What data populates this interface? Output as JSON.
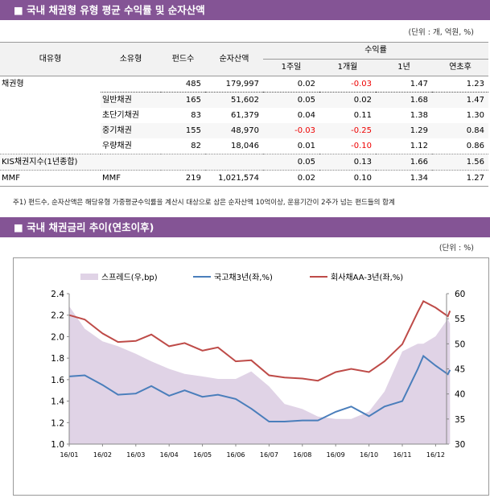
{
  "section1": {
    "title": "■ 국내 채권형 유형 평균 수익률 및 순자산액",
    "unit": "(단위 : 개, 억원, %)",
    "headers": {
      "major": "대유형",
      "minor": "소유형",
      "funds": "펀드수",
      "assets": "순자산액",
      "returns": "수익률",
      "w1": "1주일",
      "m1": "1개월",
      "y1": "1년",
      "ytd": "연초후"
    },
    "rows": [
      {
        "major": "채권형",
        "minor": "",
        "funds": "485",
        "assets": "179,997",
        "w1": "0.02",
        "m1": "-0.03",
        "y1": "1.47",
        "ytd": "1.23"
      },
      {
        "major": "",
        "minor": "일반채권",
        "funds": "165",
        "assets": "51,602",
        "w1": "0.05",
        "m1": "0.02",
        "y1": "1.68",
        "ytd": "1.47"
      },
      {
        "major": "",
        "minor": "초단기채권",
        "funds": "83",
        "assets": "61,379",
        "w1": "0.04",
        "m1": "0.11",
        "y1": "1.38",
        "ytd": "1.30"
      },
      {
        "major": "",
        "minor": "중기채권",
        "funds": "155",
        "assets": "48,970",
        "w1": "-0.03",
        "m1": "-0.25",
        "y1": "1.29",
        "ytd": "0.84"
      },
      {
        "major": "",
        "minor": "우량채권",
        "funds": "82",
        "assets": "18,046",
        "w1": "0.01",
        "m1": "-0.10",
        "y1": "1.12",
        "ytd": "0.86"
      },
      {
        "major": "KIS채권지수(1년종합)",
        "minor": "",
        "funds": "",
        "assets": "",
        "w1": "0.05",
        "m1": "0.13",
        "y1": "1.66",
        "ytd": "1.56"
      },
      {
        "major": "MMF",
        "minor": "MMF",
        "funds": "219",
        "assets": "1,021,574",
        "w1": "0.02",
        "m1": "0.10",
        "y1": "1.34",
        "ytd": "1.27"
      }
    ],
    "note": "주1) 펀드수, 순자산액은 해당유형 가중평균수익률을 계산시 대상으로 삼은 순자산액 10억이상, 운용기간이 2주가 넘는 펀드들의 합계"
  },
  "section2": {
    "title": "■ 국내 채권금리 추이(연초이후)",
    "unit": "(단위 : %)"
  },
  "chart_data": {
    "type": "line+area",
    "x_ticks": [
      "16/01",
      "16/02",
      "16/03",
      "16/04",
      "16/05",
      "16/06",
      "16/07",
      "16/08",
      "16/09",
      "16/10",
      "16/11",
      "16/12"
    ],
    "y_left": {
      "min": 1.0,
      "max": 2.4,
      "ticks": [
        "1.0",
        "1.2",
        "1.4",
        "1.6",
        "1.8",
        "2.0",
        "2.2",
        "2.4"
      ]
    },
    "y_right": {
      "min": 30,
      "max": 60,
      "ticks": [
        "30",
        "35",
        "40",
        "45",
        "50",
        "55",
        "60"
      ]
    },
    "dates": [
      "16/01/01",
      "16/01/15",
      "16/02/01",
      "16/02/15",
      "16/03/01",
      "16/03/15",
      "16/04/01",
      "16/04/15",
      "16/05/01",
      "16/05/15",
      "16/06/01",
      "16/06/15",
      "16/07/01",
      "16/07/15",
      "16/08/01",
      "16/08/15",
      "16/09/01",
      "16/09/15",
      "16/10/01",
      "16/10/15",
      "16/11/01",
      "16/11/15",
      "16/11/20",
      "16/12/01",
      "16/12/12",
      "16/12/14"
    ],
    "series": [
      {
        "name": "스프레드(우,bp)",
        "axis": "right",
        "kind": "area",
        "color": "#e0d3e6",
        "values": [
          57.5,
          53,
          50.5,
          49.5,
          48,
          46.5,
          45,
          44,
          43.5,
          43,
          43,
          44.5,
          41.5,
          38,
          37,
          35.5,
          35,
          35,
          36.5,
          40.5,
          48.5,
          50,
          50,
          51.5,
          55,
          54
        ]
      },
      {
        "name": "국고채3년(좌,%)",
        "axis": "left",
        "kind": "line",
        "color": "#4a7ebb",
        "values": [
          1.63,
          1.64,
          1.55,
          1.46,
          1.47,
          1.54,
          1.45,
          1.5,
          1.44,
          1.46,
          1.42,
          1.33,
          1.21,
          1.21,
          1.22,
          1.22,
          1.3,
          1.35,
          1.26,
          1.35,
          1.4,
          1.7,
          1.82,
          1.73,
          1.65,
          1.69
        ]
      },
      {
        "name": "회사채AA-3년(좌,%)",
        "axis": "left",
        "kind": "line",
        "color": "#be4b48",
        "values": [
          2.2,
          2.16,
          2.03,
          1.95,
          1.96,
          2.02,
          1.91,
          1.94,
          1.87,
          1.9,
          1.77,
          1.78,
          1.64,
          1.62,
          1.61,
          1.59,
          1.67,
          1.7,
          1.67,
          1.77,
          1.93,
          2.23,
          2.33,
          2.27,
          2.19,
          2.24
        ]
      }
    ],
    "legend": "top"
  }
}
